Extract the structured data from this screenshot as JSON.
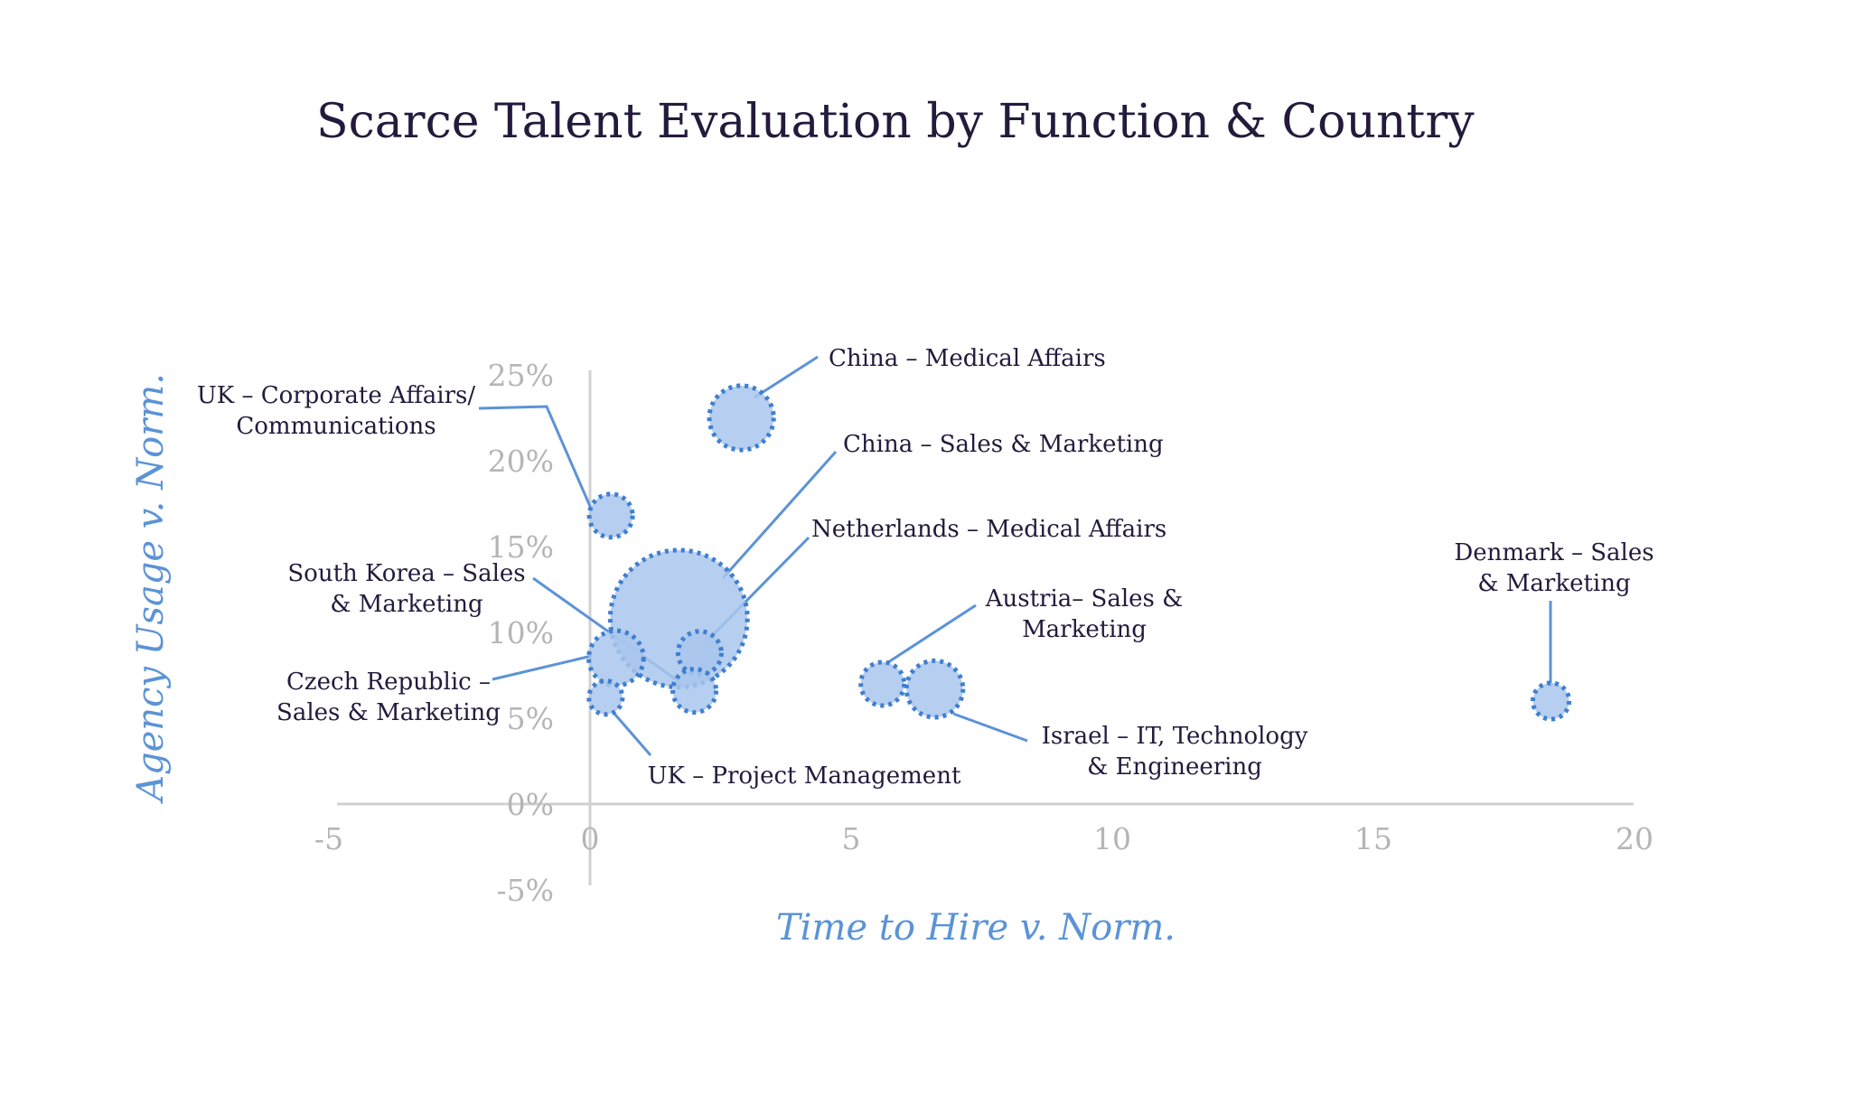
{
  "chart_data": {
    "type": "scatter",
    "title": "Scarce Talent Evaluation by Function & Country",
    "xlabel": "Time to Hire v. Norm.",
    "ylabel": "Agency Usage v. Norm.",
    "xlim": [
      -5,
      20
    ],
    "ylim": [
      -5,
      25
    ],
    "x_ticks": [
      "-5",
      "0",
      "5",
      "10",
      "15",
      "20"
    ],
    "y_ticks": [
      "-5%",
      "0%",
      "5%",
      "10%",
      "15%",
      "20%",
      "25%"
    ],
    "grid": false,
    "colors": {
      "bubble_fill": "#a9c6ec",
      "bubble_stroke": "#3f7fd0",
      "leader": "#5b93d6",
      "axis": "#d0d0d0"
    },
    "points": [
      {
        "label": [
          "China – Medical Affairs"
        ],
        "x": 2.9,
        "y": 22.5,
        "size": 2.2
      },
      {
        "label": [
          "UK – Corporate Affairs/",
          "Communications"
        ],
        "x": 0.4,
        "y": 16.8,
        "size": 1.0
      },
      {
        "label": [
          "China – Sales & Marketing"
        ],
        "x": 1.7,
        "y": 10.8,
        "size": 10.0
      },
      {
        "label": [
          "Netherlands – Medical Affairs"
        ],
        "x": 2.1,
        "y": 8.8,
        "size": 1.0
      },
      {
        "label": [
          "South Korea – Sales",
          "& Marketing"
        ],
        "x": 2.0,
        "y": 6.6,
        "size": 1.0
      },
      {
        "label": [
          "Czech Republic –",
          "Sales & Marketing"
        ],
        "x": 0.5,
        "y": 8.5,
        "size": 1.6
      },
      {
        "label": [
          "UK – Project Management"
        ],
        "x": 0.3,
        "y": 6.2,
        "size": 0.6
      },
      {
        "label": [
          "Austria– Sales &",
          "Marketing"
        ],
        "x": 5.6,
        "y": 7.0,
        "size": 1.0
      },
      {
        "label": [
          "Israel – IT, Technology",
          "& Engineering"
        ],
        "x": 6.6,
        "y": 6.7,
        "size": 1.7
      },
      {
        "label": [
          "Denmark – Sales",
          "& Marketing"
        ],
        "x": 18.4,
        "y": 6.0,
        "size": 0.7
      }
    ]
  }
}
